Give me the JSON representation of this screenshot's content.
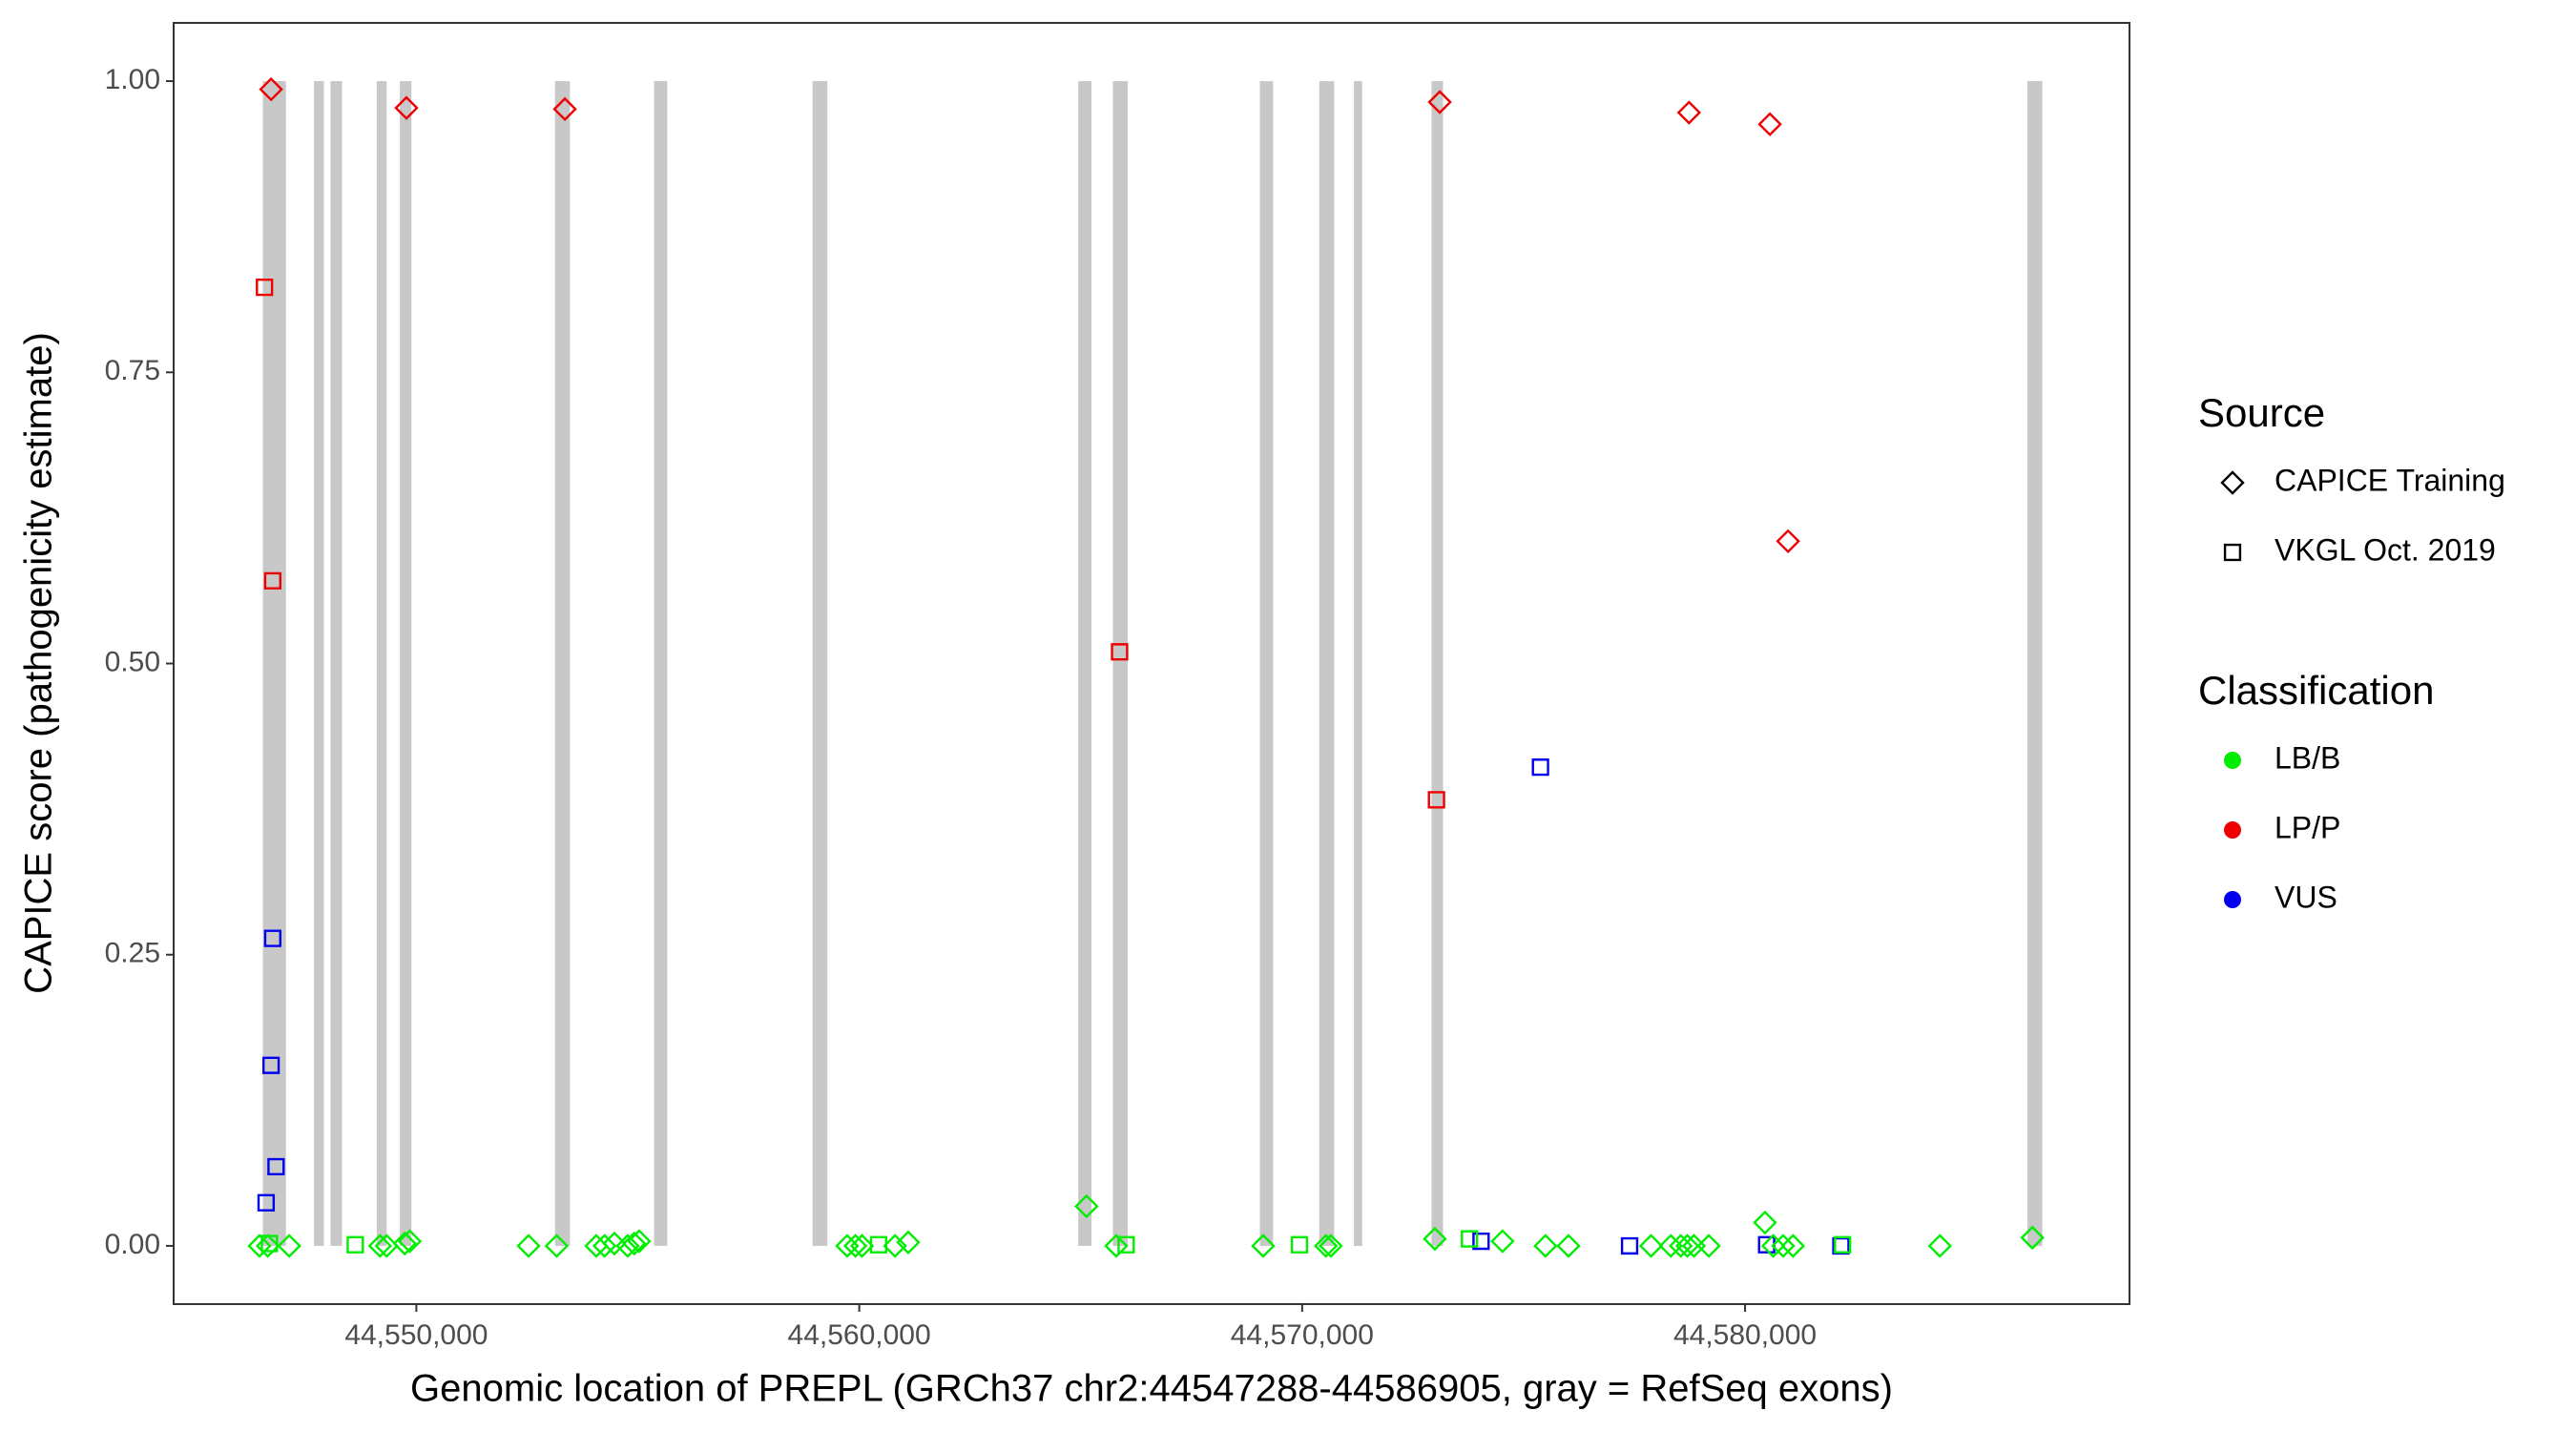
{
  "chart_data": {
    "type": "scatter",
    "x_label": "Genomic location of PREPL (GRCh37 chr2:44547288-44586905, gray = RefSeq exons)",
    "y_label": "CAPICE score (pathogenicity estimate)",
    "xlim": [
      44544520,
      44588680
    ],
    "ylim": [
      -0.05,
      1.05
    ],
    "xticks": [
      {
        "value": 44550000,
        "label": "44,550,000"
      },
      {
        "value": 44560000,
        "label": "44,560,000"
      },
      {
        "value": 44570000,
        "label": "44,570,000"
      },
      {
        "value": 44580000,
        "label": "44,580,000"
      }
    ],
    "yticks": [
      {
        "value": 0,
        "label": "0.00"
      },
      {
        "value": 0.25,
        "label": "0.25"
      },
      {
        "value": 0.5,
        "label": "0.50"
      },
      {
        "value": 0.75,
        "label": "0.75"
      },
      {
        "value": 1,
        "label": "1.00"
      }
    ],
    "exons": {
      "color": "#c8c8c8",
      "start": [
        44546534,
        44547689,
        44548062,
        44549106,
        44549627,
        44553131,
        44555367,
        44558945,
        44564945,
        44565728,
        44569045,
        44570387,
        44571169,
        44572921,
        44586376
      ],
      "end": [
        44547056,
        44547913,
        44548323,
        44549329,
        44549888,
        44553466,
        44555665,
        44559280,
        44565243,
        44566063,
        44569343,
        44570722,
        44571356,
        44573182,
        44586711
      ]
    },
    "legends": [
      {
        "title": "Source",
        "entries": [
          {
            "name": "CAPICE Training",
            "shape": "diamond"
          },
          {
            "name": "VKGL Oct. 2019",
            "shape": "square"
          }
        ]
      },
      {
        "title": "Classification",
        "entries": [
          {
            "name": "LB/B",
            "color": "#00ee00"
          },
          {
            "name": "LP/P",
            "color": "#ee0000"
          },
          {
            "name": "VUS",
            "color": "#0000ee"
          }
        ]
      }
    ],
    "points": {
      "x": [
        44546720,
        44549776,
        44553354,
        44573107,
        44578735,
        44580561,
        44580971,
        44546571,
        44546757,
        44565877,
        44573033,
        44546757,
        44546720,
        44546832,
        44546608,
        44575381,
        44574039,
        44577393,
        44580487,
        44582164,
        44546459,
        44546646,
        44547130,
        44549180,
        44549329,
        44549739,
        44549851,
        44552534,
        44553168,
        44554062,
        44554249,
        44554472,
        44554771,
        44554920,
        44555031,
        44559727,
        44559914,
        44560063,
        44560808,
        44561106,
        44565132,
        44565802,
        44569120,
        44570536,
        44570648,
        44572996,
        44574524,
        44575493,
        44576014,
        44577878,
        44578325,
        44578549,
        44578698,
        44578847,
        44579182,
        44580450,
        44580636,
        44580860,
        44581083,
        44584400,
        44586487,
        44546683,
        44548621,
        44560436,
        44566026,
        44569939,
        44573778,
        44582201
      ],
      "y": [
        0.993,
        0.977,
        0.976,
        0.982,
        0.973,
        0.963,
        0.605,
        0.823,
        0.571,
        0.51,
        0.383,
        0.264,
        0.155,
        0.068,
        0.037,
        0.411,
        0.004,
        0,
        0.001,
        0,
        0,
        0,
        0,
        0,
        0,
        0.002,
        0.004,
        0,
        0,
        0,
        0,
        0.002,
        0,
        0.002,
        0.004,
        0,
        0,
        0,
        0,
        0.003,
        0.034,
        0,
        0,
        0,
        0,
        0.006,
        0.004,
        0,
        0,
        0,
        0,
        0,
        0,
        0,
        0,
        0.02,
        0,
        0,
        0,
        0,
        0.007,
        0.002,
        0.001,
        0.001,
        0.001,
        0.001,
        0.006,
        0.001
      ],
      "source": [
        0,
        0,
        0,
        0,
        0,
        0,
        0,
        1,
        1,
        1,
        1,
        1,
        1,
        1,
        1,
        1,
        1,
        1,
        1,
        1,
        0,
        0,
        0,
        0,
        0,
        0,
        0,
        0,
        0,
        0,
        0,
        0,
        0,
        0,
        0,
        0,
        0,
        0,
        0,
        0,
        0,
        0,
        0,
        0,
        0,
        0,
        0,
        0,
        0,
        0,
        0,
        0,
        0,
        0,
        0,
        0,
        0,
        0,
        0,
        0,
        0,
        1,
        1,
        1,
        1,
        1,
        1,
        1
      ],
      "class": [
        1,
        1,
        1,
        1,
        1,
        1,
        1,
        1,
        1,
        1,
        1,
        2,
        2,
        2,
        2,
        2,
        2,
        2,
        2,
        2,
        0,
        0,
        0,
        0,
        0,
        0,
        0,
        0,
        0,
        0,
        0,
        0,
        0,
        0,
        0,
        0,
        0,
        0,
        0,
        0,
        0,
        0,
        0,
        0,
        0,
        0,
        0,
        0,
        0,
        0,
        0,
        0,
        0,
        0,
        0,
        0,
        0,
        0,
        0,
        0,
        0,
        0,
        0,
        0,
        0,
        0,
        0,
        0
      ]
    }
  }
}
